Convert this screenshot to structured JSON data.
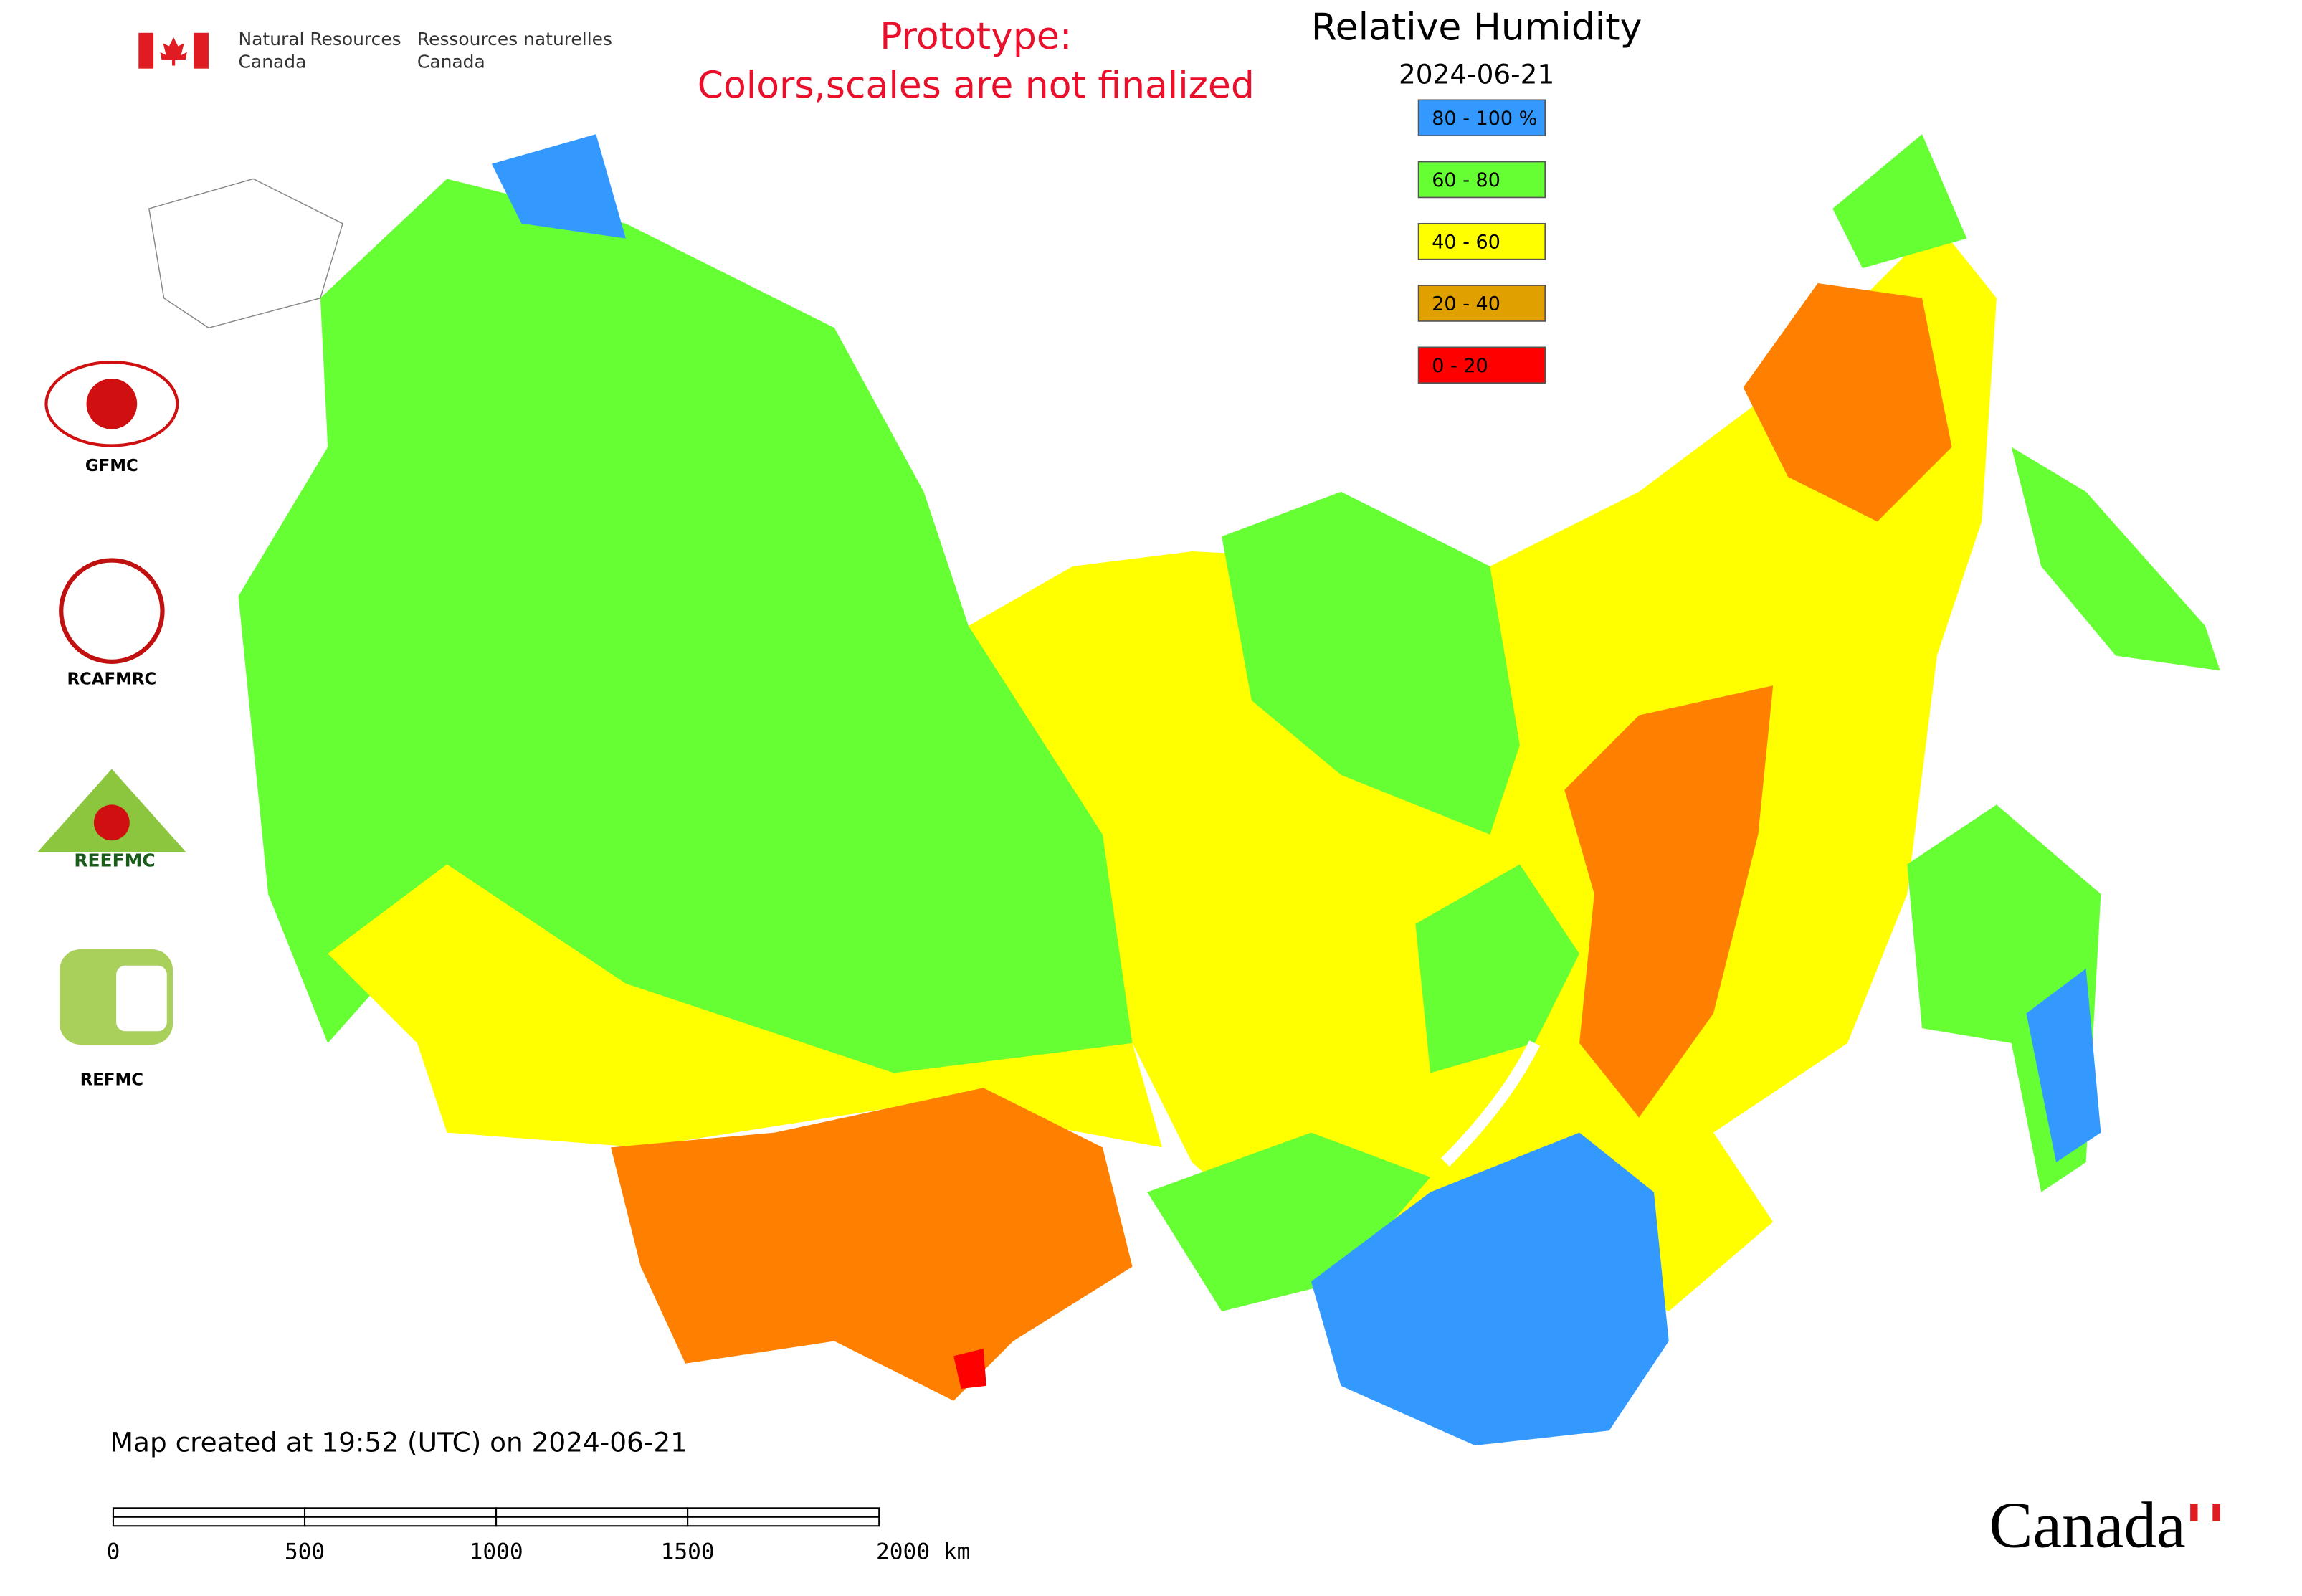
{
  "header": {
    "agency_en_1": "Natural Resources",
    "agency_en_2": "Canada",
    "agency_fr_1": "Ressources naturelles",
    "agency_fr_2": "Canada"
  },
  "notice": {
    "line1": "Prototype:",
    "line2": "Colors,scales are not finalized"
  },
  "title": "Relative Humidity",
  "date": "2024-06-21",
  "legend": [
    {
      "label": "80 - 100 %",
      "color": "#3399ff"
    },
    {
      "label": "60 - 80",
      "color": "#66ff33"
    },
    {
      "label": "40 - 60",
      "color": "#ffff00"
    },
    {
      "label": "20 - 40",
      "color": "#e0a000"
    },
    {
      "label": "0 - 20",
      "color": "#ff0000"
    }
  ],
  "logos": [
    "GFMC",
    "RCAFMRC",
    "REEFMC",
    "REFMC"
  ],
  "footer": "Map created at 19:52 (UTC) on 2024-06-21",
  "scale_bar": [
    "0",
    "500",
    "1000",
    "1500",
    "2000 km"
  ],
  "wordmark": "Canada"
}
